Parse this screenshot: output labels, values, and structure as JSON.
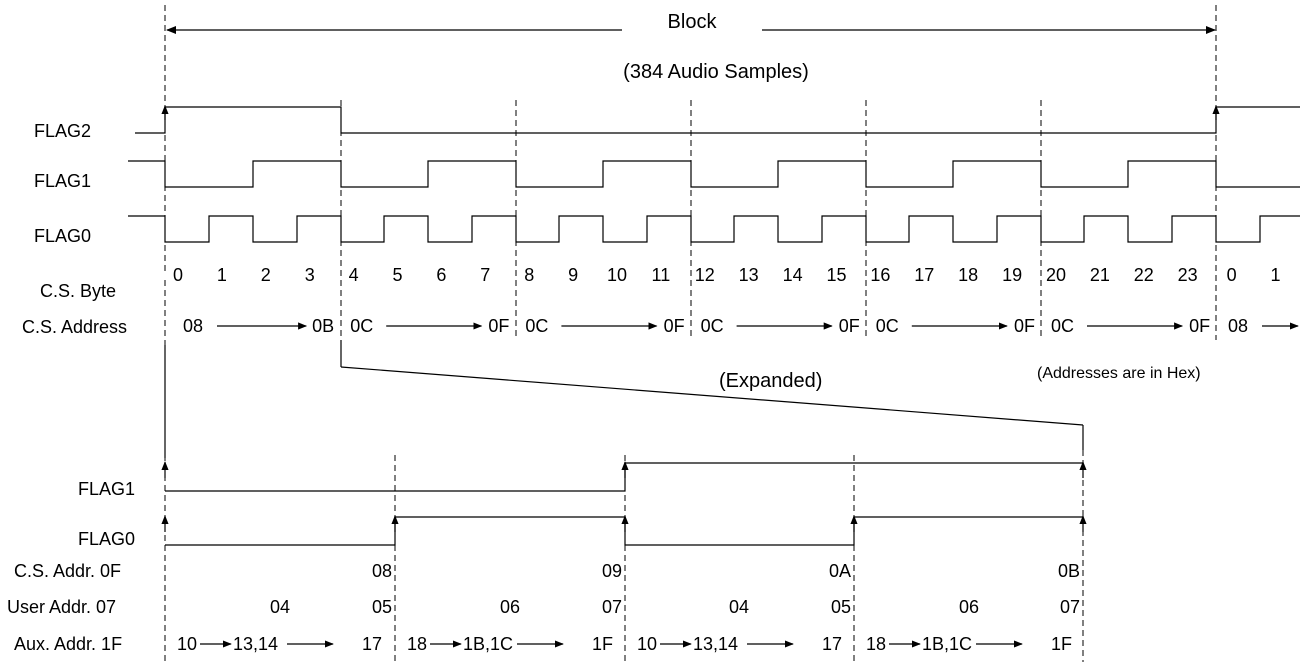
{
  "block": {
    "title": "Block",
    "subtitle": "(384 Audio Samples)"
  },
  "top_signals": {
    "flag2": "FLAG2",
    "flag1": "FLAG1",
    "flag0": "FLAG0"
  },
  "cs_byte": {
    "label": "C.S. Byte",
    "values": [
      "0",
      "1",
      "2",
      "3",
      "4",
      "5",
      "6",
      "7",
      "8",
      "9",
      "10",
      "11",
      "12",
      "13",
      "14",
      "15",
      "16",
      "17",
      "18",
      "19",
      "20",
      "21",
      "22",
      "23",
      "0",
      "1"
    ]
  },
  "cs_address": {
    "label": "C.S. Address",
    "groups": [
      {
        "start": "08",
        "end": "0B"
      },
      {
        "start": "0C",
        "end": "0F"
      },
      {
        "start": "0C",
        "end": "0F"
      },
      {
        "start": "0C",
        "end": "0F"
      },
      {
        "start": "0C",
        "end": "0F"
      },
      {
        "start": "0C",
        "end": "0F"
      }
    ],
    "trailing": "08"
  },
  "expanded": {
    "label": "(Expanded)",
    "hex_note": "(Addresses are in Hex)",
    "flag1": "FLAG1",
    "flag0": "FLAG0",
    "cs_addr": {
      "label": "C.S. Addr. 0F",
      "values": [
        "08",
        "09",
        "0A",
        "0B"
      ]
    },
    "user_addr": {
      "label": "User Addr. 07",
      "values": [
        "04",
        "05",
        "06",
        "07",
        "04",
        "05",
        "06",
        "07"
      ]
    },
    "aux_addr": {
      "label": "Aux. Addr. 1F",
      "groups": [
        {
          "a": "10",
          "b": "13,14",
          "c": "17"
        },
        {
          "a": "18",
          "b": "1B,1C",
          "c": "1F"
        },
        {
          "a": "10",
          "b": "13,14",
          "c": "17"
        },
        {
          "a": "18",
          "b": "1B,1C",
          "c": "1F"
        }
      ]
    }
  }
}
